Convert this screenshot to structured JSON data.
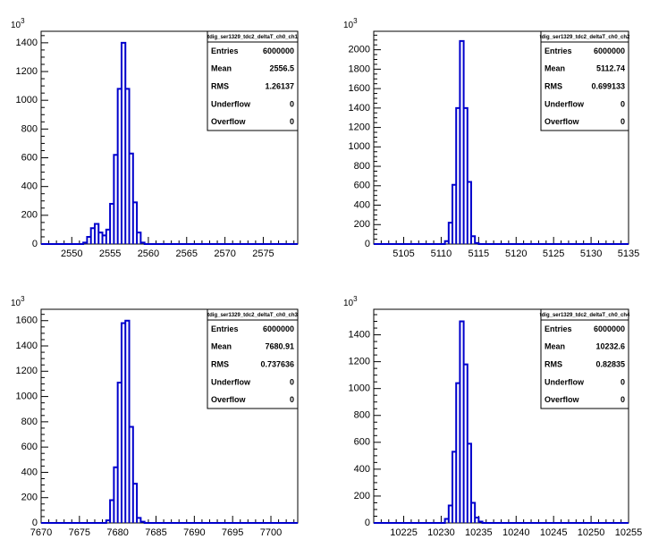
{
  "chart_data": [
    {
      "type": "histogram",
      "stats": {
        "title": "tdig_ser1329_tdc2_deltaT_ch0_ch1",
        "rows": [
          {
            "label": "Entries",
            "value": "6000000"
          },
          {
            "label": "Mean",
            "value": "2556.5"
          },
          {
            "label": "RMS",
            "value": "1.26137"
          },
          {
            "label": "Underflow",
            "value": "0"
          },
          {
            "label": "Overflow",
            "value": "0"
          }
        ]
      },
      "y_multiplier": "10",
      "y_exponent": "3",
      "xlim": [
        2546,
        2579.5
      ],
      "ylim": [
        0,
        1480
      ],
      "xticks": [
        2550,
        2555,
        2560,
        2565,
        2570,
        2575
      ],
      "yticks": [
        0,
        200,
        400,
        600,
        800,
        1000,
        1200,
        1400
      ],
      "bin_width": 0.5,
      "bins": [
        {
          "x": 2551.5,
          "y": 10
        },
        {
          "x": 2552.0,
          "y": 50
        },
        {
          "x": 2552.5,
          "y": 110
        },
        {
          "x": 2553.0,
          "y": 140
        },
        {
          "x": 2553.5,
          "y": 80
        },
        {
          "x": 2554.0,
          "y": 60
        },
        {
          "x": 2554.5,
          "y": 100
        },
        {
          "x": 2555.0,
          "y": 280
        },
        {
          "x": 2555.5,
          "y": 620
        },
        {
          "x": 2556.0,
          "y": 1080
        },
        {
          "x": 2556.5,
          "y": 1400
        },
        {
          "x": 2557.0,
          "y": 1080
        },
        {
          "x": 2557.5,
          "y": 630
        },
        {
          "x": 2558.0,
          "y": 290
        },
        {
          "x": 2558.5,
          "y": 80
        },
        {
          "x": 2559.0,
          "y": 10
        }
      ]
    },
    {
      "type": "histogram",
      "stats": {
        "title": "tdig_ser1329_tdc2_deltaT_ch0_ch2",
        "rows": [
          {
            "label": "Entries",
            "value": "6000000"
          },
          {
            "label": "Mean",
            "value": "5112.74"
          },
          {
            "label": "RMS",
            "value": "0.699133"
          },
          {
            "label": "Underflow",
            "value": "0"
          },
          {
            "label": "Overflow",
            "value": "0"
          }
        ]
      },
      "y_multiplier": "10",
      "y_exponent": "3",
      "xlim": [
        5101,
        5135
      ],
      "ylim": [
        0,
        2190
      ],
      "xticks": [
        5105,
        5110,
        5115,
        5120,
        5125,
        5130,
        5135
      ],
      "yticks": [
        0,
        200,
        400,
        600,
        800,
        1000,
        1200,
        1400,
        1600,
        1800,
        2000
      ],
      "bin_width": 0.5,
      "bins": [
        {
          "x": 5110.5,
          "y": 30
        },
        {
          "x": 5111.0,
          "y": 220
        },
        {
          "x": 5111.5,
          "y": 610
        },
        {
          "x": 5112.0,
          "y": 1400
        },
        {
          "x": 5112.5,
          "y": 2090
        },
        {
          "x": 5113.0,
          "y": 1400
        },
        {
          "x": 5113.5,
          "y": 640
        },
        {
          "x": 5114.0,
          "y": 80
        },
        {
          "x": 5114.5,
          "y": 10
        }
      ]
    },
    {
      "type": "histogram",
      "stats": {
        "title": "tdig_ser1329_tdc2_deltaT_ch0_ch3",
        "rows": [
          {
            "label": "Entries",
            "value": "6000000"
          },
          {
            "label": "Mean",
            "value": "7680.91"
          },
          {
            "label": "RMS",
            "value": "0.737636"
          },
          {
            "label": "Underflow",
            "value": "0"
          },
          {
            "label": "Overflow",
            "value": "0"
          }
        ]
      },
      "y_multiplier": "10",
      "y_exponent": "3",
      "xlim": [
        7670,
        7703.5
      ],
      "ylim": [
        0,
        1690
      ],
      "xticks": [
        7670,
        7675,
        7680,
        7685,
        7690,
        7695,
        7700
      ],
      "yticks": [
        0,
        200,
        400,
        600,
        800,
        1000,
        1200,
        1400,
        1600
      ],
      "bin_width": 0.5,
      "bins": [
        {
          "x": 7678.5,
          "y": 20
        },
        {
          "x": 7679.0,
          "y": 180
        },
        {
          "x": 7679.5,
          "y": 440
        },
        {
          "x": 7680.0,
          "y": 1110
        },
        {
          "x": 7680.5,
          "y": 1580
        },
        {
          "x": 7681.0,
          "y": 1600
        },
        {
          "x": 7681.5,
          "y": 760
        },
        {
          "x": 7682.0,
          "y": 310
        },
        {
          "x": 7682.5,
          "y": 40
        },
        {
          "x": 7683.0,
          "y": 10
        }
      ]
    },
    {
      "type": "histogram",
      "stats": {
        "title": "tdig_ser1329_tdc2_deltaT_ch0_ch4",
        "rows": [
          {
            "label": "Entries",
            "value": "6000000"
          },
          {
            "label": "Mean",
            "value": "10232.6"
          },
          {
            "label": "RMS",
            "value": "0.82835"
          },
          {
            "label": "Underflow",
            "value": "0"
          },
          {
            "label": "Overflow",
            "value": "0"
          }
        ]
      },
      "y_multiplier": "10",
      "y_exponent": "3",
      "xlim": [
        10221,
        10255
      ],
      "ylim": [
        0,
        1590
      ],
      "xticks": [
        10225,
        10230,
        10235,
        10240,
        10245,
        10250,
        10255
      ],
      "yticks": [
        0,
        200,
        400,
        600,
        800,
        1000,
        1200,
        1400
      ],
      "bin_width": 0.5,
      "bins": [
        {
          "x": 10230.5,
          "y": 30
        },
        {
          "x": 10231.0,
          "y": 130
        },
        {
          "x": 10231.5,
          "y": 530
        },
        {
          "x": 10232.0,
          "y": 1040
        },
        {
          "x": 10232.5,
          "y": 1500
        },
        {
          "x": 10233.0,
          "y": 1180
        },
        {
          "x": 10233.5,
          "y": 590
        },
        {
          "x": 10234.0,
          "y": 150
        },
        {
          "x": 10234.5,
          "y": 40
        },
        {
          "x": 10235.0,
          "y": 10
        }
      ]
    }
  ]
}
